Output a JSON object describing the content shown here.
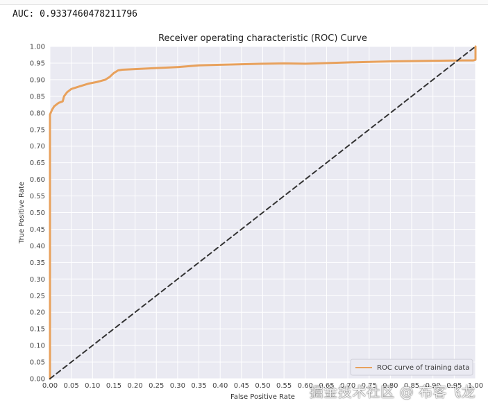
{
  "output": {
    "auc_text": "AUC: 0.9337460478211796"
  },
  "chart_data": {
    "type": "line",
    "title": "Receiver operating characteristic (ROC) Curve",
    "xlabel": "False Positive Rate",
    "ylabel": "True Positive Rate",
    "xlim": [
      0,
      1
    ],
    "ylim": [
      0,
      1
    ],
    "xticks": [
      "0.00",
      "0.05",
      "0.10",
      "0.15",
      "0.20",
      "0.25",
      "0.30",
      "0.35",
      "0.40",
      "0.45",
      "0.50",
      "0.55",
      "0.60",
      "0.65",
      "0.70",
      "0.75",
      "0.80",
      "0.85",
      "0.90",
      "0.95",
      "1.00"
    ],
    "yticks": [
      "0.00",
      "0.05",
      "0.10",
      "0.15",
      "0.20",
      "0.25",
      "0.30",
      "0.35",
      "0.40",
      "0.45",
      "0.50",
      "0.55",
      "0.60",
      "0.65",
      "0.70",
      "0.75",
      "0.80",
      "0.85",
      "0.90",
      "0.95",
      "1.00"
    ],
    "grid": true,
    "legend_position": "lower right",
    "background_color": "#eaeaf2",
    "series": [
      {
        "name": "ROC curve of training data",
        "color": "#e8a15c",
        "style": "solid",
        "x": [
          0.0,
          0.0,
          0.005,
          0.01,
          0.02,
          0.03,
          0.033,
          0.04,
          0.05,
          0.07,
          0.09,
          0.11,
          0.13,
          0.14,
          0.15,
          0.16,
          0.17,
          0.2,
          0.25,
          0.3,
          0.35,
          0.4,
          0.5,
          0.55,
          0.6,
          0.7,
          0.8,
          0.9,
          0.97,
          0.995,
          1.0,
          1.0
        ],
        "y": [
          0.0,
          0.795,
          0.81,
          0.82,
          0.83,
          0.835,
          0.85,
          0.862,
          0.872,
          0.88,
          0.888,
          0.893,
          0.9,
          0.908,
          0.92,
          0.928,
          0.93,
          0.932,
          0.935,
          0.938,
          0.943,
          0.945,
          0.948,
          0.949,
          0.948,
          0.952,
          0.955,
          0.957,
          0.958,
          0.958,
          0.96,
          1.0
        ]
      },
      {
        "name": "",
        "color": "#333333",
        "style": "dashed",
        "x": [
          0.0,
          1.0
        ],
        "y": [
          0.0,
          1.0
        ]
      }
    ]
  },
  "watermark_text": "掘金技术社区 @ 布客飞龙"
}
